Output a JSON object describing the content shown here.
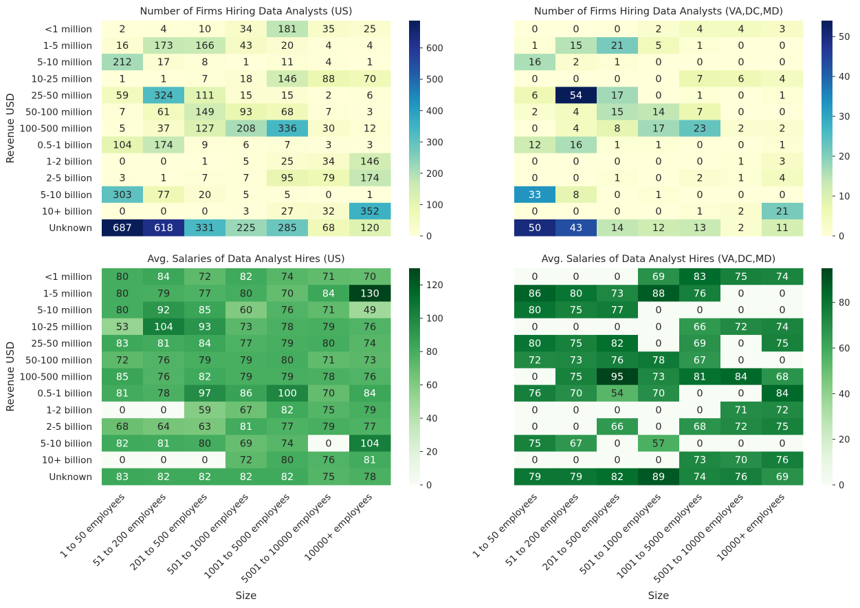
{
  "shared": {
    "ylabel": "Revenue USD",
    "xlabel": "Size",
    "rows": [
      "<1 million",
      "1-5 million",
      "5-10 million",
      "10-25 million",
      "25-50 million",
      "50-100 million",
      "100-500 million",
      "0.5-1 billion",
      "1-2 billion",
      "2-5 billion",
      "5-10 billion",
      "10+ billion",
      "Unknown"
    ],
    "cols": [
      "1 to 50 employees",
      "51 to 200 employees",
      "201 to 500 employees",
      "501 to 1000 employees",
      "1001 to 5000 employees",
      "5001 to 10000 employees",
      "10000+ employees"
    ]
  },
  "chart_data": [
    {
      "type": "heatmap",
      "title": "Number of Firms Hiring Data Analysts (US)",
      "colormap": "YlGnBu",
      "vmin": 0,
      "vmax": 687,
      "colorbar_ticks": [
        0,
        100,
        200,
        300,
        400,
        500,
        600
      ],
      "values": [
        [
          2,
          4,
          10,
          34,
          181,
          35,
          25
        ],
        [
          16,
          173,
          166,
          43,
          20,
          4,
          4
        ],
        [
          212,
          17,
          8,
          1,
          11,
          4,
          1
        ],
        [
          1,
          1,
          7,
          18,
          146,
          88,
          70
        ],
        [
          59,
          324,
          111,
          15,
          15,
          2,
          6
        ],
        [
          7,
          61,
          149,
          93,
          68,
          7,
          3
        ],
        [
          5,
          37,
          127,
          208,
          336,
          30,
          12
        ],
        [
          104,
          174,
          9,
          6,
          7,
          3,
          3
        ],
        [
          0,
          0,
          1,
          5,
          25,
          34,
          146
        ],
        [
          3,
          1,
          7,
          7,
          95,
          79,
          174
        ],
        [
          303,
          77,
          20,
          5,
          5,
          0,
          1
        ],
        [
          0,
          0,
          0,
          3,
          27,
          32,
          352
        ],
        [
          687,
          618,
          331,
          225,
          285,
          68,
          120
        ]
      ]
    },
    {
      "type": "heatmap",
      "title": "Number of Firms Hiring Data Analysts (VA,DC,MD)",
      "colormap": "YlGnBu",
      "vmin": 0,
      "vmax": 54,
      "colorbar_ticks": [
        0,
        10,
        20,
        30,
        40,
        50
      ],
      "values": [
        [
          0,
          0,
          0,
          2,
          4,
          4,
          3
        ],
        [
          1,
          15,
          21,
          5,
          1,
          0,
          0
        ],
        [
          16,
          2,
          1,
          0,
          0,
          0,
          0
        ],
        [
          0,
          0,
          0,
          0,
          7,
          6,
          4
        ],
        [
          6,
          54,
          17,
          0,
          1,
          0,
          1
        ],
        [
          2,
          4,
          15,
          14,
          7,
          0,
          0
        ],
        [
          0,
          4,
          8,
          17,
          23,
          2,
          2
        ],
        [
          12,
          16,
          1,
          1,
          0,
          0,
          1
        ],
        [
          0,
          0,
          0,
          0,
          0,
          1,
          3
        ],
        [
          0,
          0,
          1,
          0,
          2,
          1,
          4
        ],
        [
          33,
          8,
          0,
          1,
          0,
          0,
          0
        ],
        [
          0,
          0,
          0,
          0,
          1,
          2,
          21
        ],
        [
          50,
          43,
          14,
          12,
          13,
          2,
          11
        ]
      ]
    },
    {
      "type": "heatmap",
      "title": "Avg. Salaries of Data Analyst Hires (US)",
      "colormap": "Greens",
      "vmin": 0,
      "vmax": 130,
      "colorbar_ticks": [
        0,
        20,
        40,
        60,
        80,
        100,
        120
      ],
      "values": [
        [
          80,
          84,
          72,
          82,
          74,
          71,
          70
        ],
        [
          80,
          79,
          77,
          80,
          70,
          84,
          130
        ],
        [
          80,
          92,
          85,
          60,
          76,
          71,
          49
        ],
        [
          53,
          104,
          93,
          73,
          78,
          79,
          76
        ],
        [
          83,
          81,
          84,
          77,
          79,
          80,
          74
        ],
        [
          72,
          76,
          79,
          79,
          80,
          71,
          73
        ],
        [
          85,
          76,
          82,
          79,
          79,
          78,
          76
        ],
        [
          81,
          78,
          97,
          86,
          100,
          70,
          84
        ],
        [
          0,
          0,
          59,
          67,
          82,
          75,
          79
        ],
        [
          68,
          64,
          63,
          81,
          77,
          79,
          77
        ],
        [
          82,
          81,
          80,
          69,
          74,
          0,
          104
        ],
        [
          0,
          0,
          0,
          72,
          80,
          76,
          81
        ],
        [
          83,
          82,
          82,
          82,
          82,
          75,
          78
        ]
      ]
    },
    {
      "type": "heatmap",
      "title": "Avg. Salaries of Data Analyst Hires (VA,DC,MD)",
      "colormap": "Greens",
      "vmin": 0,
      "vmax": 95,
      "colorbar_ticks": [
        0,
        20,
        40,
        60,
        80
      ],
      "values": [
        [
          0,
          0,
          0,
          69,
          83,
          75,
          74
        ],
        [
          86,
          80,
          73,
          88,
          76,
          0,
          0
        ],
        [
          80,
          75,
          77,
          0,
          0,
          0,
          0
        ],
        [
          0,
          0,
          0,
          0,
          66,
          72,
          74
        ],
        [
          80,
          75,
          82,
          0,
          69,
          0,
          75
        ],
        [
          72,
          73,
          76,
          78,
          67,
          0,
          0
        ],
        [
          0,
          75,
          95,
          73,
          81,
          84,
          68
        ],
        [
          76,
          70,
          54,
          70,
          0,
          0,
          84
        ],
        [
          0,
          0,
          0,
          0,
          0,
          71,
          72
        ],
        [
          0,
          0,
          66,
          0,
          68,
          72,
          75
        ],
        [
          75,
          67,
          0,
          57,
          0,
          0,
          0
        ],
        [
          0,
          0,
          0,
          0,
          73,
          70,
          76
        ],
        [
          79,
          79,
          82,
          89,
          74,
          76,
          69
        ]
      ]
    }
  ]
}
